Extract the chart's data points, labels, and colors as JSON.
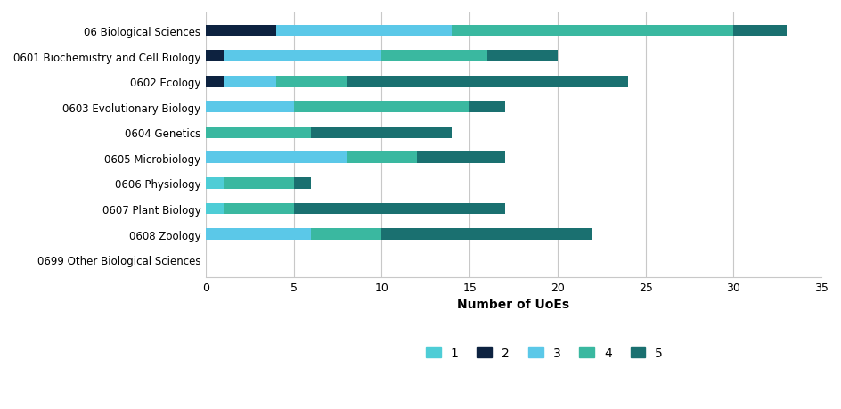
{
  "categories": [
    "06 Biological Sciences",
    "0601 Biochemistry and Cell Biology",
    "0602 Ecology",
    "0603 Evolutionary Biology",
    "0604 Genetics",
    "0605 Microbiology",
    "0606 Physiology",
    "0607 Plant Biology",
    "0608 Zoology",
    "0699 Other Biological Sciences"
  ],
  "ratings": {
    "1": [
      0,
      0,
      0,
      0,
      0,
      0,
      1,
      1,
      0,
      0
    ],
    "2": [
      4,
      1,
      1,
      0,
      0,
      0,
      0,
      0,
      0,
      0
    ],
    "3": [
      10,
      9,
      3,
      5,
      0,
      8,
      0,
      0,
      6,
      0
    ],
    "4": [
      16,
      6,
      4,
      10,
      6,
      4,
      4,
      4,
      4,
      0
    ],
    "5": [
      3,
      4,
      16,
      2,
      8,
      5,
      1,
      12,
      12,
      0
    ]
  },
  "colors": {
    "1": "#4ecdd6",
    "2": "#0d2240",
    "3": "#5bc8e8",
    "4": "#3ab8a0",
    "5": "#1a7070"
  },
  "xlabel": "Number of UoEs",
  "xlim": [
    0,
    35
  ],
  "xticks": [
    0,
    5,
    10,
    15,
    20,
    25,
    30,
    35
  ],
  "legend_labels": [
    "1",
    "2",
    "3",
    "4",
    "5"
  ],
  "background_color": "#ffffff",
  "grid_color": "#c8c8c8"
}
